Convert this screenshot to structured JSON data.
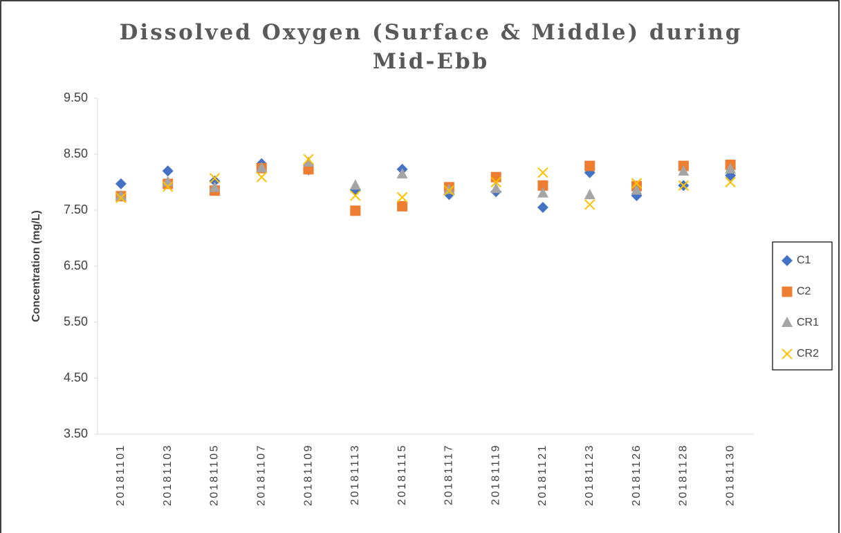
{
  "chart_data": {
    "type": "scatter",
    "title": "Dissolved Oxygen (Surface & Middle) during Mid-Ebb",
    "ylabel": "Concentration (mg/L)",
    "categories": [
      "20181101",
      "20181103",
      "20181105",
      "20181107",
      "20181109",
      "20181113",
      "20181115",
      "20181117",
      "20181119",
      "20181121",
      "20181123",
      "20181126",
      "20181128",
      "20181130"
    ],
    "series": [
      {
        "name": "C1",
        "color": "#4472c4",
        "marker": "diamond",
        "values": [
          7.97,
          8.2,
          8.02,
          8.33,
          8.22,
          7.86,
          8.23,
          7.78,
          7.83,
          7.55,
          8.17,
          7.76,
          7.94,
          8.12
        ]
      },
      {
        "name": "C2",
        "color": "#ed7d31",
        "marker": "square",
        "values": [
          7.75,
          7.97,
          7.85,
          8.25,
          8.23,
          7.49,
          7.57,
          7.91,
          8.09,
          7.94,
          8.29,
          7.93,
          8.29,
          8.31
        ]
      },
      {
        "name": "CR1",
        "color": "#a5a5a5",
        "marker": "triangle",
        "values": [
          7.75,
          8.0,
          7.9,
          8.25,
          8.35,
          7.94,
          8.14,
          7.86,
          7.88,
          7.8,
          7.77,
          7.85,
          8.19,
          8.23
        ]
      },
      {
        "name": "CR2",
        "color": "#ffc000",
        "marker": "x",
        "values": [
          7.72,
          7.92,
          8.07,
          8.09,
          8.41,
          7.76,
          7.73,
          7.85,
          8.0,
          8.17,
          7.6,
          7.98,
          7.94,
          8.0
        ]
      }
    ],
    "ylim": [
      3.5,
      9.5
    ],
    "yticks": [
      {
        "value": 3.5,
        "label": "3.50"
      },
      {
        "value": 4.5,
        "label": "4.50"
      },
      {
        "value": 5.5,
        "label": "5.50"
      },
      {
        "value": 6.5,
        "label": "6.50"
      },
      {
        "value": 7.5,
        "label": "7.50"
      },
      {
        "value": 8.5,
        "label": "8.50"
      },
      {
        "value": 9.5,
        "label": "9.50"
      }
    ],
    "legend": "right"
  }
}
